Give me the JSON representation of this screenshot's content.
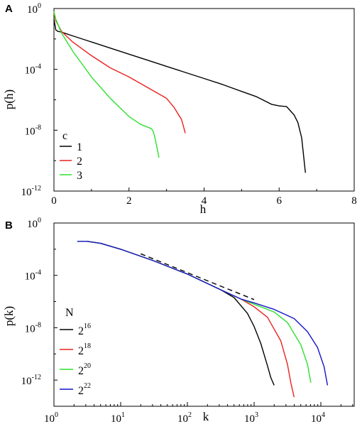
{
  "chart_data": [
    {
      "panel": "A",
      "type": "line",
      "xlabel": "h",
      "ylabel": "p(h)",
      "xlim": [
        0,
        8
      ],
      "ylim_log10": [
        -12,
        0
      ],
      "x_ticks": [
        "0",
        "2",
        "4",
        "6",
        "8"
      ],
      "y_ticks": [
        {
          "base": "10",
          "exp": "0"
        },
        {
          "base": "10",
          "exp": "-4"
        },
        {
          "base": "10",
          "exp": "-8"
        },
        {
          "base": "10",
          "exp": "-12"
        }
      ],
      "legend_title": "c",
      "legend_position": "bottom-left",
      "series": [
        {
          "name": "1",
          "color": "#000000",
          "x": [
            0.0,
            0.05,
            0.1,
            0.2,
            0.5,
            1.0,
            1.5,
            2.0,
            2.5,
            3.0,
            3.5,
            4.0,
            4.5,
            5.0,
            5.4,
            5.8,
            6.0,
            6.2,
            6.4,
            6.5,
            6.6,
            6.7
          ],
          "y_log10": [
            -0.7,
            -1.4,
            -1.5,
            -1.55,
            -1.8,
            -2.2,
            -2.6,
            -3.0,
            -3.4,
            -3.8,
            -4.2,
            -4.6,
            -5.0,
            -5.45,
            -5.8,
            -6.3,
            -6.4,
            -6.45,
            -7.0,
            -7.5,
            -8.5,
            -10.8
          ]
        },
        {
          "name": "2",
          "color": "#e8221e",
          "x": [
            0.0,
            0.05,
            0.2,
            0.5,
            1.0,
            1.5,
            2.0,
            2.5,
            3.0,
            3.2,
            3.4,
            3.5
          ],
          "y_log10": [
            -0.3,
            -0.8,
            -1.5,
            -2.2,
            -3.1,
            -3.9,
            -4.5,
            -5.2,
            -5.9,
            -6.5,
            -7.3,
            -8.2
          ]
        },
        {
          "name": "3",
          "color": "#2ee02e",
          "x": [
            0.0,
            0.05,
            0.2,
            0.5,
            1.0,
            1.5,
            2.0,
            2.3,
            2.6,
            2.65,
            2.7,
            2.75,
            2.8
          ],
          "y_log10": [
            -0.2,
            -0.7,
            -1.6,
            -2.8,
            -4.5,
            -5.9,
            -7.1,
            -7.6,
            -7.9,
            -8.1,
            -8.6,
            -9.2,
            -9.8
          ]
        }
      ]
    },
    {
      "panel": "B",
      "type": "line",
      "xlabel": "k",
      "ylabel": "p(k)",
      "xlim_log10": [
        0,
        4.5
      ],
      "ylim_log10": [
        -14,
        0
      ],
      "x_ticks": [
        {
          "base": "10",
          "exp": "0"
        },
        {
          "base": "10",
          "exp": "1"
        },
        {
          "base": "10",
          "exp": "2"
        },
        {
          "base": "10",
          "exp": "3"
        },
        {
          "base": "10",
          "exp": "4"
        }
      ],
      "y_ticks": [
        {
          "base": "10",
          "exp": "0"
        },
        {
          "base": "10",
          "exp": "-4"
        },
        {
          "base": "10",
          "exp": "-8"
        },
        {
          "base": "10",
          "exp": "-12"
        }
      ],
      "legend_title": "N",
      "legend_position": "bottom-left",
      "reference_line": {
        "style": "dashed",
        "color": "#000000",
        "x_log10": [
          1.3,
          3.0
        ],
        "y_log10": [
          -2.35,
          -5.85
        ]
      },
      "series": [
        {
          "name_base": "2",
          "name_exp": "16",
          "color": "#000000",
          "x_log10": [
            0.35,
            0.5,
            0.7,
            1.0,
            1.5,
            2.0,
            2.5,
            2.7,
            2.9,
            3.0,
            3.1,
            3.2,
            3.25,
            3.3
          ],
          "y_log10": [
            -1.4,
            -1.4,
            -1.55,
            -2.0,
            -2.9,
            -3.9,
            -5.1,
            -5.7,
            -6.9,
            -7.9,
            -9.2,
            -10.9,
            -11.8,
            -12.4
          ]
        },
        {
          "name_base": "2",
          "name_exp": "18",
          "color": "#e8221e",
          "x_log10": [
            0.35,
            0.5,
            0.7,
            1.0,
            1.5,
            2.0,
            2.5,
            2.8,
            3.0,
            3.2,
            3.4,
            3.5,
            3.55,
            3.6
          ],
          "y_log10": [
            -1.4,
            -1.4,
            -1.55,
            -2.0,
            -2.9,
            -3.9,
            -5.1,
            -5.8,
            -6.4,
            -7.2,
            -9.0,
            -10.8,
            -12.2,
            -13.3
          ]
        },
        {
          "name_base": "2",
          "name_exp": "20",
          "color": "#2ee02e",
          "x_log10": [
            0.35,
            0.5,
            0.7,
            1.0,
            1.5,
            2.0,
            2.5,
            2.8,
            3.0,
            3.3,
            3.5,
            3.7,
            3.8,
            3.85
          ],
          "y_log10": [
            -1.4,
            -1.4,
            -1.55,
            -2.0,
            -2.9,
            -3.9,
            -5.1,
            -5.8,
            -6.2,
            -6.8,
            -7.6,
            -9.3,
            -10.8,
            -12.2
          ]
        },
        {
          "name_base": "2",
          "name_exp": "22",
          "color": "#1414c8",
          "x_log10": [
            0.35,
            0.5,
            0.7,
            1.0,
            1.5,
            2.0,
            2.5,
            2.8,
            3.0,
            3.3,
            3.6,
            3.8,
            3.95,
            4.05,
            4.1
          ],
          "y_log10": [
            -1.4,
            -1.4,
            -1.55,
            -2.0,
            -2.9,
            -3.9,
            -5.1,
            -5.8,
            -6.1,
            -6.6,
            -7.3,
            -8.3,
            -9.5,
            -11.0,
            -12.4
          ]
        }
      ]
    }
  ]
}
